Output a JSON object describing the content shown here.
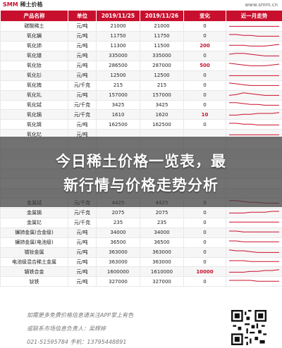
{
  "brand": {
    "name_prefix": "SMM",
    "name_suffix": " 稀土价格",
    "site": "www.smm.cn"
  },
  "table": {
    "headers": [
      "产品名称",
      "单位",
      "2019/11/25",
      "2019/11/26",
      "变化",
      "近一月走势"
    ],
    "rows": [
      {
        "name": "碳酸稀土",
        "unit": "元/吨",
        "p1": "21000",
        "p2": "21000",
        "chg": "0",
        "trend": [
          3,
          3,
          3,
          3,
          3,
          3,
          3,
          3
        ]
      },
      {
        "name": "氧化镧",
        "unit": "元/吨",
        "p1": "11750",
        "p2": "11750",
        "chg": "0",
        "trend": [
          5,
          5,
          4,
          4,
          3,
          3,
          3,
          3
        ]
      },
      {
        "name": "氧化铈",
        "unit": "元/吨",
        "p1": "11300",
        "p2": "11500",
        "chg": "200",
        "trend": [
          4,
          4,
          4,
          3,
          3,
          3,
          4,
          5
        ]
      },
      {
        "name": "氧化镨",
        "unit": "元/吨",
        "p1": "335000",
        "p2": "335000",
        "chg": "0",
        "trend": [
          5,
          6,
          6,
          5,
          4,
          3,
          3,
          3
        ]
      },
      {
        "name": "氧化钕",
        "unit": "元/吨",
        "p1": "286500",
        "p2": "287000",
        "chg": "500",
        "trend": [
          6,
          5,
          4,
          3,
          3,
          3,
          4,
          5
        ]
      },
      {
        "name": "氧化钐",
        "unit": "元/吨",
        "p1": "12500",
        "p2": "12500",
        "chg": "0",
        "trend": [
          3,
          3,
          3,
          3,
          3,
          3,
          3,
          3
        ]
      },
      {
        "name": "氧化铕",
        "unit": "元/千克",
        "p1": "215",
        "p2": "215",
        "chg": "0",
        "trend": [
          6,
          5,
          4,
          3,
          3,
          3,
          3,
          3
        ]
      },
      {
        "name": "氧化钆",
        "unit": "元/吨",
        "p1": "157000",
        "p2": "157000",
        "chg": "0",
        "trend": [
          3,
          4,
          6,
          5,
          4,
          3,
          3,
          3
        ]
      },
      {
        "name": "氧化铽",
        "unit": "元/千克",
        "p1": "3425",
        "p2": "3425",
        "chg": "0",
        "trend": [
          6,
          6,
          5,
          4,
          4,
          3,
          3,
          3
        ]
      },
      {
        "name": "氧化镝",
        "unit": "元/千克",
        "p1": "1610",
        "p2": "1620",
        "chg": "10",
        "trend": [
          3,
          3,
          4,
          4,
          5,
          5,
          5,
          6
        ]
      },
      {
        "name": "氧化铒",
        "unit": "元/吨",
        "p1": "162500",
        "p2": "162500",
        "chg": "0",
        "trend": [
          5,
          5,
          4,
          4,
          3,
          3,
          3,
          3
        ]
      },
      {
        "name": "氧化钇",
        "unit": "元/吨",
        "p1": "",
        "p2": "",
        "chg": "",
        "trend": [
          3,
          3,
          3,
          3,
          3,
          3,
          3,
          3
        ]
      },
      {
        "name": "",
        "unit": "",
        "p1": "",
        "p2": "",
        "chg": "",
        "trend": []
      },
      {
        "name": "",
        "unit": "",
        "p1": "",
        "p2": "",
        "chg": "",
        "trend": []
      },
      {
        "name": "",
        "unit": "",
        "p1": "",
        "p2": "",
        "chg": "",
        "trend": []
      },
      {
        "name": "",
        "unit": "",
        "p1": "",
        "p2": "",
        "chg": "",
        "trend": []
      },
      {
        "name": "",
        "unit": "",
        "p1": "",
        "p2": "",
        "chg": "",
        "trend": []
      },
      {
        "name": "",
        "unit": "",
        "p1": "",
        "p2": "",
        "chg": "",
        "trend": []
      },
      {
        "name": "金属铽",
        "unit": "元/千克",
        "p1": "4425",
        "p2": "4425",
        "chg": "0",
        "trend": [
          6,
          6,
          5,
          4,
          4,
          3,
          3,
          3
        ]
      },
      {
        "name": "金属镝",
        "unit": "元/千克",
        "p1": "2075",
        "p2": "2075",
        "chg": "0",
        "trend": [
          3,
          3,
          3,
          4,
          4,
          4,
          5,
          5
        ]
      },
      {
        "name": "金属钇",
        "unit": "元/千克",
        "p1": "235",
        "p2": "235",
        "chg": "0",
        "trend": [
          4,
          4,
          4,
          4,
          4,
          4,
          4,
          4
        ]
      },
      {
        "name": "镧铈金属(合金级)",
        "unit": "元/吨",
        "p1": "34000",
        "p2": "34000",
        "chg": "0",
        "trend": [
          5,
          5,
          4,
          4,
          4,
          4,
          4,
          4
        ]
      },
      {
        "name": "镧铈金属(电池级)",
        "unit": "元/吨",
        "p1": "36500",
        "p2": "36500",
        "chg": "0",
        "trend": [
          5,
          5,
          4,
          4,
          4,
          4,
          4,
          4
        ]
      },
      {
        "name": "镨钕金属",
        "unit": "元/吨",
        "p1": "363000",
        "p2": "363000",
        "chg": "0",
        "trend": [
          6,
          5,
          5,
          4,
          3,
          3,
          3,
          3
        ]
      },
      {
        "name": "电池级混合稀土金属",
        "unit": "元/吨",
        "p1": "363000",
        "p2": "363000",
        "chg": "0",
        "trend": [
          5,
          5,
          5,
          4,
          4,
          4,
          4,
          4
        ]
      },
      {
        "name": "镝铁合金",
        "unit": "元/吨",
        "p1": "1600000",
        "p2": "1610000",
        "chg": "10000",
        "trend": [
          3,
          3,
          3,
          4,
          4,
          5,
          5,
          6
        ]
      },
      {
        "name": "钬铁",
        "unit": "元/吨",
        "p1": "327000",
        "p2": "327000",
        "chg": "0",
        "trend": [
          5,
          5,
          5,
          5,
          4,
          4,
          4,
          4
        ]
      }
    ]
  },
  "headline": {
    "line1": "今日稀土价格一览表，最",
    "line2": "新行情与价格走势分析"
  },
  "footer": {
    "line1": "如需更多免费价格信息请关注APP掌上有色",
    "line2": "或联系市场信息负责人：吴辉婷",
    "phone": "021-51595784  手机：13795448891"
  },
  "colors": {
    "brand_red": "#c8102e"
  }
}
